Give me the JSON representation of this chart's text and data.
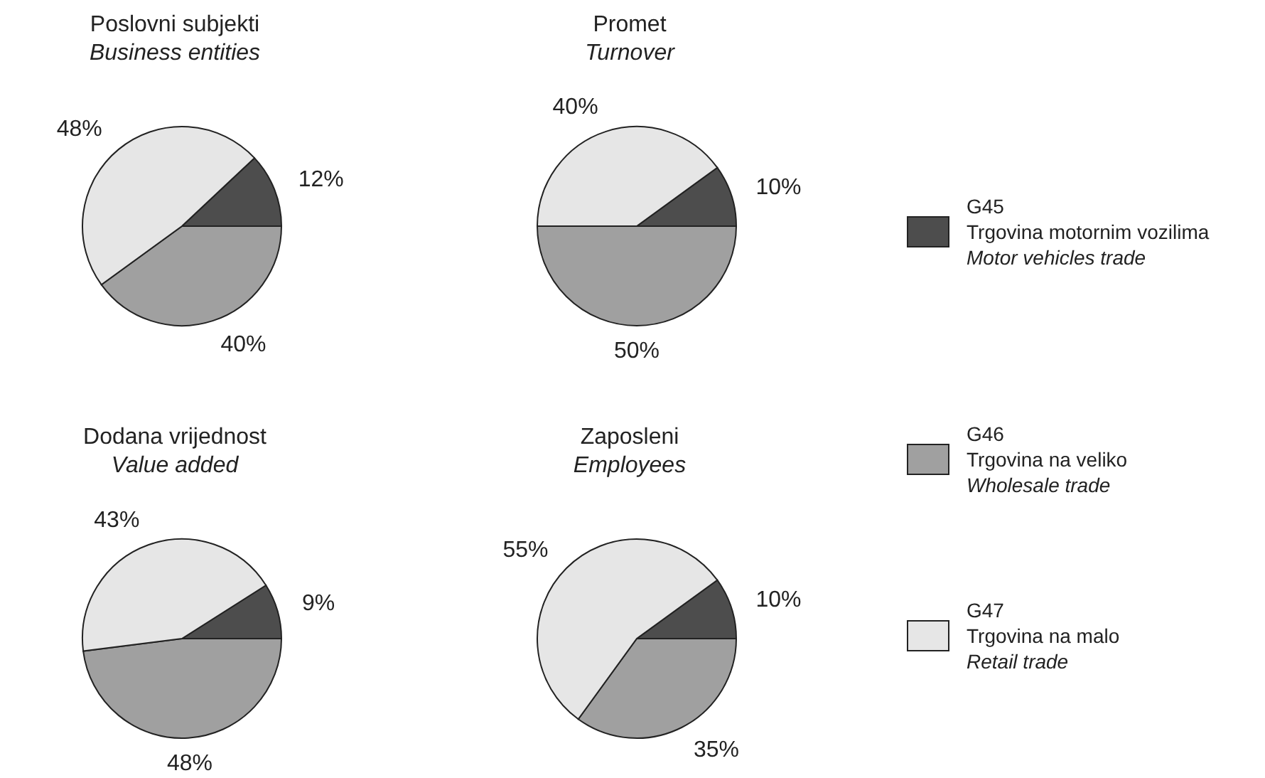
{
  "chart_data": [
    {
      "type": "pie",
      "title": "Poslovni subjekti\nBusiness entities",
      "categories": [
        "G45\nTrgovina motornim vozilima\nMotor vehicles trade",
        "G46\nTrgovina na veliko\nWholesale trade",
        "G47\nTrgovina na malo\nRetail trade"
      ],
      "values": [
        12,
        40,
        48
      ],
      "value_labels": [
        "12%",
        "40%",
        "48%"
      ],
      "colors": [
        "#4d4d4d",
        "#a0a0a0",
        "#e6e6e6"
      ],
      "legend": "right"
    },
    {
      "type": "pie",
      "title": "Promet\nTurnover",
      "categories": [
        null,
        null,
        null
      ],
      "values": [
        10,
        50,
        40
      ],
      "value_labels": [
        "10%",
        "50%",
        "40%"
      ],
      "colors": [
        "#4d4d4d",
        "#a0a0a0",
        "#e6e6e6"
      ]
    },
    {
      "type": "pie",
      "title": "Dodana vrijednost\nValue added",
      "categories": [
        null,
        null,
        null
      ],
      "values": [
        9,
        48,
        43
      ],
      "value_labels": [
        "9%",
        "48%",
        "43%"
      ],
      "colors": [
        "#4d4d4d",
        "#a0a0a0",
        "#e6e6e6"
      ]
    },
    {
      "type": "pie",
      "title": "Zaposleni\nEmployees",
      "categories": [
        null,
        null,
        null
      ],
      "values": [
        10,
        35,
        55
      ],
      "value_labels": [
        "10%",
        "35%",
        "55%"
      ],
      "colors": [
        "#4d4d4d",
        "#a0a0a0",
        "#e6e6e6"
      ]
    }
  ]
}
